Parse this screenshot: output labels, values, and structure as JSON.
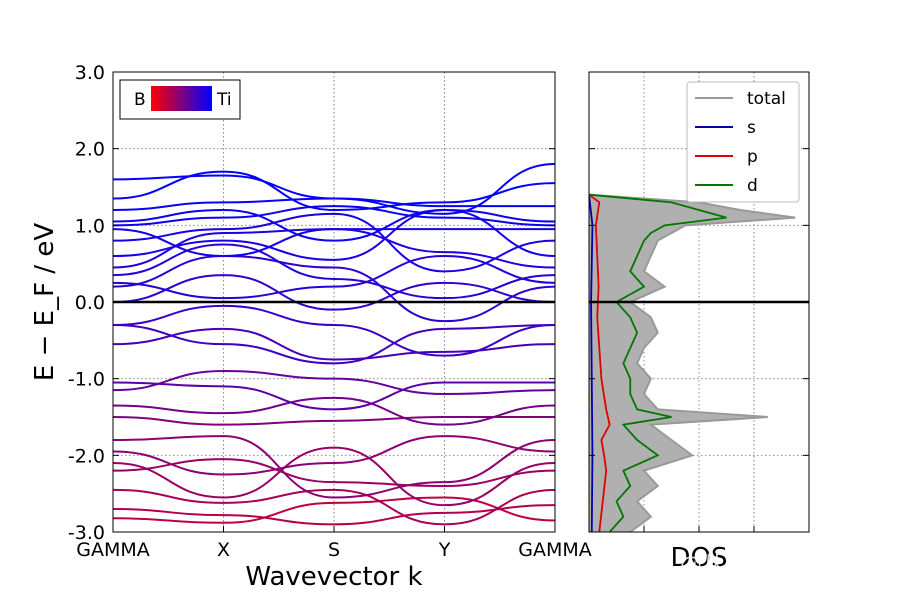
{
  "chart_data": [
    {
      "type": "line",
      "subtype": "band-structure",
      "xlabel": "Wavevector k",
      "ylabel": "E − E_F / eV",
      "ylim": [
        -3.0,
        3.0
      ],
      "yticks": [
        "-3.0",
        "-2.0",
        "-1.0",
        "0.0",
        "1.0",
        "2.0",
        "3.0"
      ],
      "kpoints": [
        "GAMMA",
        "X",
        "S",
        "Y",
        "GAMMA"
      ],
      "kpoint_positions": [
        0,
        1,
        2,
        3,
        4
      ],
      "fermi_level": 0.0,
      "grid": true,
      "colorbar_legend": {
        "left_label": "B",
        "right_label": "Ti",
        "left_color": "#ff0000",
        "right_color": "#0000ff",
        "position": "top-left"
      },
      "bands": [
        {
          "energies": [
            -2.82,
            -2.88,
            -2.62,
            -2.55,
            -2.85
          ],
          "weight": 0.25
        },
        {
          "energies": [
            -2.7,
            -2.78,
            -2.9,
            -2.75,
            -2.65
          ],
          "weight": 0.3
        },
        {
          "energies": [
            -2.45,
            -2.62,
            -2.45,
            -2.9,
            -2.45
          ],
          "weight": 0.35
        },
        {
          "energies": [
            -2.2,
            -2.05,
            -2.35,
            -2.4,
            -2.2
          ],
          "weight": 0.4
        },
        {
          "energies": [
            -2.1,
            -2.55,
            -1.9,
            -2.65,
            -2.1
          ],
          "weight": 0.4
        },
        {
          "energies": [
            -1.95,
            -2.25,
            -2.1,
            -1.75,
            -1.95
          ],
          "weight": 0.45
        },
        {
          "energies": [
            -1.8,
            -1.75,
            -2.55,
            -2.35,
            -1.8
          ],
          "weight": 0.45
        },
        {
          "energies": [
            -1.5,
            -1.6,
            -1.55,
            -1.5,
            -1.5
          ],
          "weight": 0.5
        },
        {
          "energies": [
            -1.35,
            -1.45,
            -1.25,
            -1.6,
            -1.35
          ],
          "weight": 0.55
        },
        {
          "energies": [
            -1.15,
            -0.9,
            -1.0,
            -1.2,
            -1.15
          ],
          "weight": 0.6
        },
        {
          "energies": [
            -1.05,
            -1.1,
            -1.4,
            -1.05,
            -1.05
          ],
          "weight": 0.65
        },
        {
          "energies": [
            -0.55,
            -0.35,
            -0.75,
            -0.65,
            -0.55
          ],
          "weight": 0.72
        },
        {
          "energies": [
            -0.3,
            -0.55,
            -0.8,
            -0.35,
            -0.3
          ],
          "weight": 0.75
        },
        {
          "energies": [
            -0.3,
            -0.05,
            -0.3,
            -0.7,
            -0.3
          ],
          "weight": 0.78
        },
        {
          "energies": [
            0.0,
            0.35,
            -0.1,
            0.25,
            0.0
          ],
          "weight": 0.8
        },
        {
          "energies": [
            0.2,
            0.6,
            0.45,
            -0.25,
            0.2
          ],
          "weight": 0.82
        },
        {
          "energies": [
            0.25,
            0.05,
            0.2,
            0.6,
            0.25
          ],
          "weight": 0.85
        },
        {
          "energies": [
            0.35,
            0.75,
            0.3,
            0.05,
            0.35
          ],
          "weight": 0.85
        },
        {
          "energies": [
            0.45,
            0.9,
            0.95,
            0.65,
            0.45
          ],
          "weight": 0.88
        },
        {
          "energies": [
            0.6,
            0.8,
            0.55,
            1.2,
            0.6
          ],
          "weight": 0.9
        },
        {
          "energies": [
            0.8,
            0.95,
            1.15,
            0.4,
            0.8
          ],
          "weight": 0.9
        },
        {
          "energies": [
            0.95,
            0.6,
            0.95,
            0.95,
            0.95
          ],
          "weight": 0.92
        },
        {
          "energies": [
            1.0,
            1.1,
            1.25,
            1.1,
            1.0
          ],
          "weight": 0.95
        },
        {
          "energies": [
            1.05,
            1.2,
            0.8,
            1.2,
            1.05
          ],
          "weight": 0.95
        },
        {
          "energies": [
            1.2,
            1.3,
            1.35,
            1.25,
            1.25
          ],
          "weight": 0.97
        },
        {
          "energies": [
            1.35,
            1.7,
            1.2,
            1.3,
            1.55
          ],
          "weight": 0.98
        },
        {
          "energies": [
            1.6,
            1.65,
            1.35,
            1.15,
            1.8
          ],
          "weight": 0.98
        }
      ]
    },
    {
      "type": "area",
      "subtype": "density-of-states",
      "xlabel": "DOS",
      "ylim": [
        -3.0,
        3.0
      ],
      "grid": true,
      "legend": [
        "total",
        "s",
        "p",
        "d"
      ],
      "legend_position": "top-right",
      "series": [
        {
          "name": "total",
          "color": "#999999",
          "energies": [
            -3.0,
            -2.8,
            -2.6,
            -2.4,
            -2.2,
            -2.0,
            -1.8,
            -1.6,
            -1.5,
            -1.4,
            -1.2,
            -1.0,
            -0.8,
            -0.6,
            -0.4,
            -0.2,
            0.0,
            0.2,
            0.4,
            0.6,
            0.8,
            0.9,
            1.0,
            1.1,
            1.2,
            1.3,
            1.4
          ],
          "values": [
            0.6,
            0.9,
            0.7,
            1.0,
            0.8,
            1.5,
            1.2,
            0.9,
            2.6,
            1.0,
            0.8,
            0.9,
            0.7,
            0.8,
            1.0,
            0.9,
            0.6,
            1.1,
            0.8,
            0.9,
            1.0,
            1.2,
            1.4,
            3.0,
            2.2,
            1.6,
            0.0
          ]
        },
        {
          "name": "s",
          "color": "#0000aa",
          "energies": [
            -3.0,
            -2.0,
            -1.0,
            0.0,
            1.0,
            1.4
          ],
          "values": [
            0.04,
            0.05,
            0.04,
            0.03,
            0.05,
            0.0
          ]
        },
        {
          "name": "p",
          "color": "#e00000",
          "energies": [
            -3.0,
            -2.6,
            -2.2,
            -2.0,
            -1.8,
            -1.6,
            -1.4,
            -1.0,
            -0.6,
            -0.2,
            0.2,
            0.6,
            1.0,
            1.3,
            1.4
          ],
          "values": [
            0.15,
            0.2,
            0.25,
            0.22,
            0.18,
            0.3,
            0.25,
            0.18,
            0.15,
            0.12,
            0.14,
            0.12,
            0.1,
            0.15,
            0.0
          ]
        },
        {
          "name": "d",
          "color": "#007700",
          "energies": [
            -3.0,
            -2.8,
            -2.6,
            -2.4,
            -2.2,
            -2.0,
            -1.8,
            -1.6,
            -1.5,
            -1.4,
            -1.2,
            -1.0,
            -0.8,
            -0.6,
            -0.4,
            -0.2,
            0.0,
            0.2,
            0.4,
            0.6,
            0.8,
            0.9,
            1.0,
            1.1,
            1.2,
            1.3,
            1.4
          ],
          "values": [
            0.3,
            0.5,
            0.4,
            0.6,
            0.5,
            1.0,
            0.7,
            0.5,
            1.2,
            0.7,
            0.6,
            0.6,
            0.5,
            0.6,
            0.7,
            0.6,
            0.4,
            0.8,
            0.6,
            0.7,
            0.8,
            0.9,
            1.1,
            2.0,
            1.6,
            1.2,
            0.0
          ]
        }
      ]
    }
  ],
  "watermark": "知乎 @从火星来到火星去"
}
